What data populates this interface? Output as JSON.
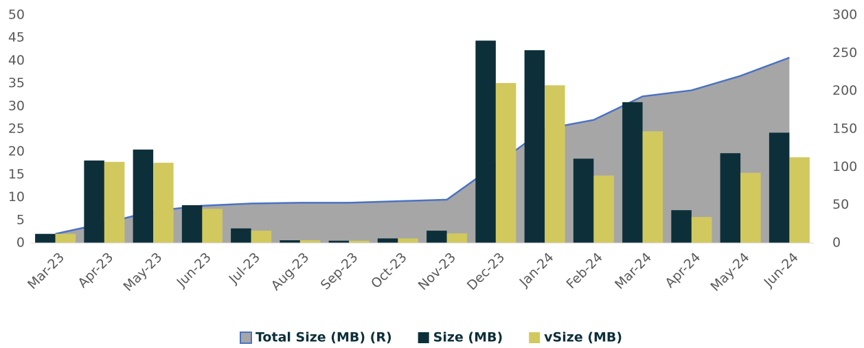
{
  "chart_data": {
    "type": "bar",
    "categories": [
      "Mar-23",
      "Apr-23",
      "May-23",
      "Jun-23",
      "Jul-23",
      "Aug-23",
      "Sep-23",
      "Oct-23",
      "Nov-23",
      "Dec-23",
      "Jan-24",
      "Feb-24",
      "Mar-24",
      "Apr-24",
      "May-24",
      "Jun-24"
    ],
    "series": [
      {
        "name": "Total Size (MB) (R)",
        "type": "area",
        "axis": "y2",
        "color": "#a6a6a6",
        "line_color": "#4a72c4",
        "values": [
          12,
          26,
          42,
          49,
          52,
          53,
          53,
          55,
          57,
          103,
          150,
          162,
          193,
          201,
          220,
          244
        ]
      },
      {
        "name": "Size (MB)",
        "type": "bar",
        "color": "#0d2f3a",
        "values": [
          2.0,
          18.1,
          20.5,
          8.3,
          3.2,
          0.6,
          0.5,
          1.0,
          2.7,
          44.4,
          42.3,
          18.5,
          30.9,
          7.2,
          19.7,
          24.2
        ]
      },
      {
        "name": "vSize (MB)",
        "type": "bar",
        "color": "#d1c95e",
        "values": [
          2.0,
          17.8,
          17.6,
          7.5,
          2.7,
          0.6,
          0.5,
          1.0,
          2.1,
          35.1,
          34.6,
          14.8,
          24.5,
          5.7,
          15.4,
          18.8
        ]
      }
    ],
    "ylim": [
      0,
      50
    ],
    "yticks": [
      0,
      5,
      10,
      15,
      20,
      25,
      30,
      35,
      40,
      45,
      50
    ],
    "y2lim": [
      0,
      300
    ],
    "y2ticks": [
      0,
      50,
      100,
      150,
      200,
      250,
      300
    ],
    "legend": "bottom",
    "grid": false
  }
}
